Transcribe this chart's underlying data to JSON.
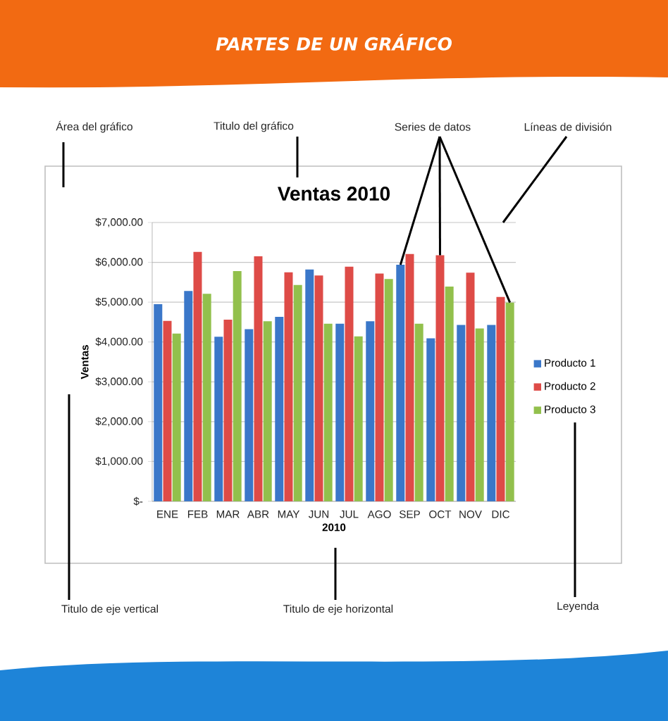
{
  "chart_data": {
    "type": "bar",
    "title": "Ventas 2010",
    "xlabel": "2010",
    "ylabel": "Ventas",
    "categories": [
      "ENE",
      "FEB",
      "MAR",
      "ABR",
      "MAY",
      "JUN",
      "JUL",
      "AGO",
      "SEP",
      "OCT",
      "NOV",
      "DIC"
    ],
    "series": [
      {
        "name": "Producto 1",
        "color": "#3a77c9",
        "values": [
          4950,
          5280,
          4130,
          4320,
          4630,
          5820,
          4460,
          4520,
          5940,
          4090,
          4430,
          4430
        ]
      },
      {
        "name": "Producto 2",
        "color": "#de4b47",
        "values": [
          4530,
          6260,
          4560,
          6150,
          5750,
          5670,
          5890,
          5720,
          6210,
          6180,
          5740,
          5130
        ]
      },
      {
        "name": "Producto 3",
        "color": "#92c04c",
        "values": [
          4210,
          5210,
          5780,
          4520,
          5430,
          4460,
          4140,
          5580,
          4460,
          5390,
          4340,
          4990
        ]
      }
    ],
    "ylim": [
      0,
      7000
    ],
    "yticks": [
      {
        "value": 0,
        "label": "$-"
      },
      {
        "value": 1000,
        "label": "$1,000.00"
      },
      {
        "value": 2000,
        "label": "$2,000.00"
      },
      {
        "value": 3000,
        "label": "$3,000.00"
      },
      {
        "value": 4000,
        "label": "$4,000.00"
      },
      {
        "value": 5000,
        "label": "$5,000.00"
      },
      {
        "value": 6000,
        "label": "$6,000.00"
      },
      {
        "value": 7000,
        "label": "$7,000.00"
      }
    ],
    "grid": "y",
    "legend": "right",
    "annotations": [
      "PARTES DE UN GRÁFICO",
      "Área del gráfico",
      "Titulo del gráfico",
      {
        "text": "Series de datos",
        "x": "OCT",
        "y": 6180
      },
      "Líneas de división",
      "Titulo de eje vertical",
      "Titulo de eje horizontal",
      "Leyenda"
    ]
  }
}
